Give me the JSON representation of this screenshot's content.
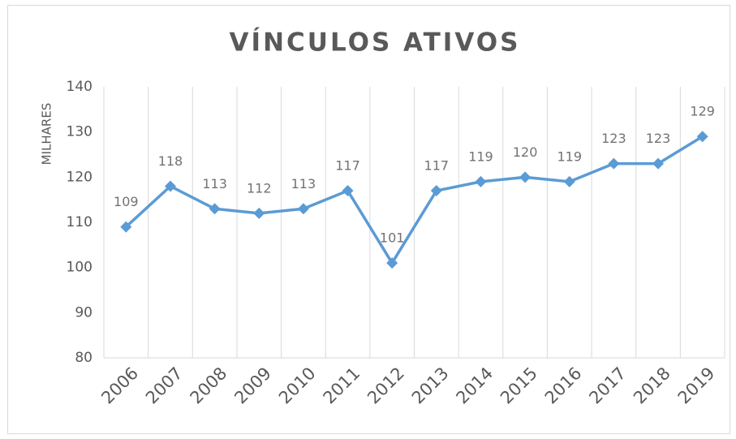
{
  "chart_data": {
    "type": "line",
    "title": "VÍNCULOS  ATIVOS",
    "y_label": "MILHARES",
    "categories": [
      "2006",
      "2007",
      "2008",
      "2009",
      "2010",
      "2011",
      "2012",
      "2013",
      "2014",
      "2015",
      "2016",
      "2017",
      "2018",
      "2019"
    ],
    "series": [
      {
        "name": "Vínculos ativos",
        "color": "#5b9bd5",
        "values": [
          109,
          118,
          113,
          112,
          113,
          117,
          101,
          117,
          119,
          120,
          119,
          123,
          123,
          129
        ]
      }
    ],
    "ylim": [
      80,
      140
    ],
    "yticks": [
      80,
      90,
      100,
      110,
      120,
      130,
      140
    ],
    "grid": true
  }
}
